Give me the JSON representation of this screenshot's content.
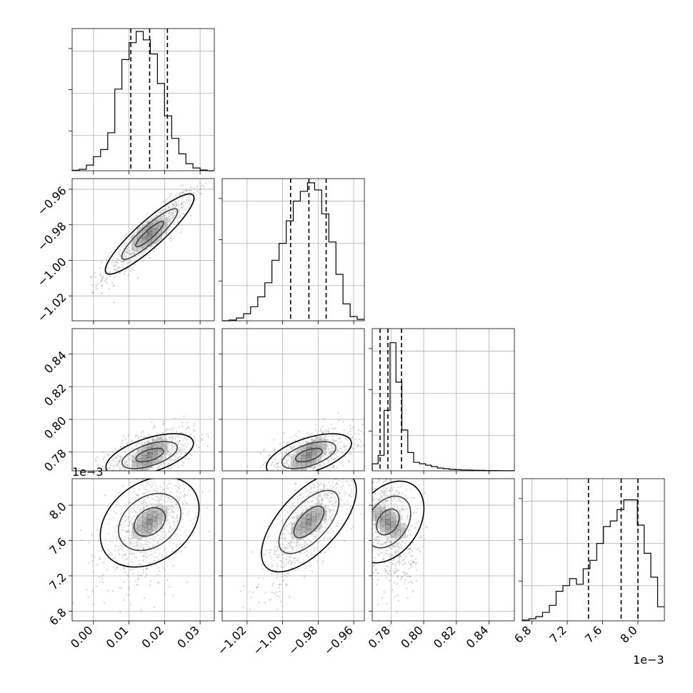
{
  "chart_data": {
    "type": "corner",
    "parameters": [
      {
        "name": "",
        "range": [
          -0.006,
          0.034
        ],
        "quantiles": [
          0.0105,
          0.0158,
          0.0208
        ],
        "ticks": [
          "0.00",
          "0.01",
          "0.02",
          "0.03"
        ],
        "tick_values": [
          0.0,
          0.01,
          0.02,
          0.03
        ],
        "exponent_label": ""
      },
      {
        "name": "",
        "range": [
          -1.034,
          -0.954
        ],
        "quantiles": [
          -0.9955,
          -0.9852,
          -0.9755
        ],
        "ticks": [
          "−1.02",
          "−1.00",
          "−0.98",
          "−0.96"
        ],
        "tick_values": [
          -1.02,
          -1.0,
          -0.98,
          -0.96
        ],
        "exponent_label": ""
      },
      {
        "name": "",
        "range": [
          0.7685,
          0.8555
        ],
        "quantiles": [
          0.7733,
          0.7781,
          0.7864
        ],
        "ticks": [
          "0.78",
          "0.80",
          "0.82",
          "0.84"
        ],
        "tick_values": [
          0.78,
          0.8,
          0.82,
          0.84
        ],
        "exponent_label": ""
      },
      {
        "name": "",
        "range": [
          6.69,
          8.3
        ],
        "quantiles": [
          7.44,
          7.81,
          8.0
        ],
        "ticks": [
          "6.8",
          "7.2",
          "7.6",
          "8.0"
        ],
        "tick_values": [
          6.8,
          7.2,
          7.6,
          8.0
        ],
        "exponent_label": "1e−3"
      }
    ],
    "histograms": [
      {
        "counts": [
          0.003,
          0.01,
          0.04,
          0.1,
          0.15,
          0.27,
          0.58,
          0.79,
          0.91,
          0.99,
          0.93,
          0.83,
          0.62,
          0.39,
          0.23,
          0.12,
          0.05,
          0.02,
          0.005,
          0.0
        ]
      },
      {
        "counts": [
          0.0,
          0.005,
          0.02,
          0.05,
          0.1,
          0.17,
          0.27,
          0.43,
          0.55,
          0.71,
          0.85,
          0.92,
          0.98,
          0.93,
          0.76,
          0.56,
          0.33,
          0.12,
          0.03,
          0.01
        ]
      },
      {
        "counts": [
          0.05,
          0.11,
          0.43,
          0.91,
          0.63,
          0.29,
          0.13,
          0.06,
          0.05,
          0.04,
          0.03,
          0.02,
          0.015,
          0.01,
          0.008,
          0.006,
          0.005,
          0.004,
          0.003,
          0.002,
          0.002,
          0.0015,
          0.001,
          0.0005
        ]
      },
      {
        "counts": [
          0.005,
          0.015,
          0.03,
          0.06,
          0.11,
          0.21,
          0.25,
          0.3,
          0.26,
          0.37,
          0.43,
          0.55,
          0.67,
          0.71,
          0.79,
          0.86,
          0.86,
          0.68,
          0.48,
          0.31,
          0.1
        ]
      }
    ],
    "correlations": {
      "1-0": 0.92,
      "2-0": 0.55,
      "2-1": 0.55,
      "3-0": 0.55,
      "3-1": 0.78,
      "3-2": -0.3
    },
    "annotations": [
      "1e−3",
      "1e−3"
    ],
    "grid": true,
    "quantile_line_style": "dashed"
  }
}
